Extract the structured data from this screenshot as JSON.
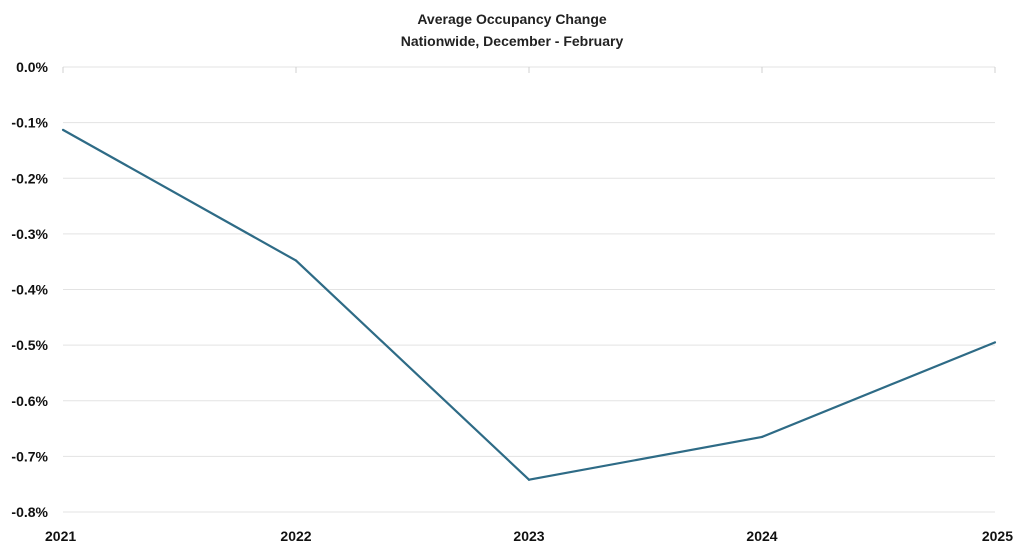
{
  "chart_data": {
    "type": "line",
    "title": "Average Occupancy Change",
    "subtitle": "Nationwide, December - February",
    "xlabel": "",
    "ylabel": "",
    "x": [
      "2021",
      "2022",
      "2023",
      "2024",
      "2025"
    ],
    "series": [
      {
        "values": [
          -0.113,
          -0.348,
          -0.742,
          -0.665,
          -0.495
        ],
        "color": "#2e6b86"
      }
    ],
    "ylim": [
      -0.8,
      0.0
    ],
    "yticks": [
      0.0,
      -0.1,
      -0.2,
      -0.3,
      -0.4,
      -0.5,
      -0.6,
      -0.7,
      -0.8
    ],
    "ytick_labels": [
      "0.0%",
      "-0.1%",
      "-0.2%",
      "-0.3%",
      "-0.4%",
      "-0.5%",
      "-0.6%",
      "-0.7%",
      "-0.8%"
    ],
    "grid": true,
    "legend": "none"
  }
}
